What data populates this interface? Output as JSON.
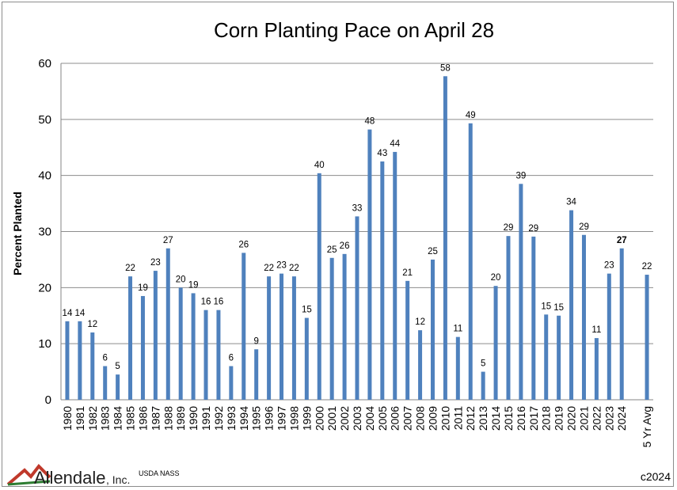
{
  "chart_data": {
    "type": "bar",
    "title": "Corn Planting Pace on April 28",
    "xlabel": "",
    "ylabel": "Percent Planted",
    "ylim": [
      0,
      60
    ],
    "yticks": [
      0,
      10,
      20,
      30,
      40,
      50,
      60
    ],
    "grid": true,
    "bar_color": "#4f81bd",
    "categories": [
      "1980",
      "1981",
      "1982",
      "1983",
      "1984",
      "1985",
      "1986",
      "1987",
      "1988",
      "1989",
      "1990",
      "1991",
      "1992",
      "1993",
      "1994",
      "1995",
      "1996",
      "1997",
      "1998",
      "1999",
      "2000",
      "2001",
      "2002",
      "2003",
      "2004",
      "2005",
      "2006",
      "2007",
      "2008",
      "2009",
      "2010",
      "2011",
      "2012",
      "2013",
      "2014",
      "2015",
      "2016",
      "2017",
      "2018",
      "2019",
      "2020",
      "2021",
      "2022",
      "2023",
      "2024",
      "",
      "5 Yr Avg"
    ],
    "values": [
      14,
      14,
      12,
      6,
      4.5,
      22,
      18.5,
      23,
      27,
      20,
      19,
      16,
      16,
      6,
      26.2,
      9,
      22,
      22.5,
      22,
      14.6,
      40.4,
      25.3,
      26,
      32.7,
      48.2,
      42.5,
      44.2,
      21.2,
      12.4,
      25,
      57.7,
      11.2,
      49.3,
      5,
      20.3,
      29.2,
      38.5,
      29.1,
      15.2,
      15,
      33.8,
      29.4,
      11,
      22.5,
      27,
      null,
      22.3
    ],
    "data_labels": [
      "14",
      "14",
      "12",
      "6",
      "5",
      "22",
      "19",
      "23",
      "27",
      "20",
      "19",
      "16",
      "16",
      "6",
      "26",
      "9",
      "22",
      "23",
      "22",
      "15",
      "40",
      "25",
      "26",
      "33",
      "48",
      "43",
      "44",
      "21",
      "12",
      "25",
      "58",
      "11",
      "49",
      "5",
      "20",
      "29",
      "39",
      "29",
      "15",
      "15",
      "34",
      "29",
      "11",
      "23",
      "27",
      "",
      "22"
    ],
    "bold_label_category": "2024"
  },
  "footer": {
    "logo_text": "Allendale",
    "logo_suffix": ", Inc.",
    "source": "USDA NASS",
    "copyright": "c2024"
  }
}
